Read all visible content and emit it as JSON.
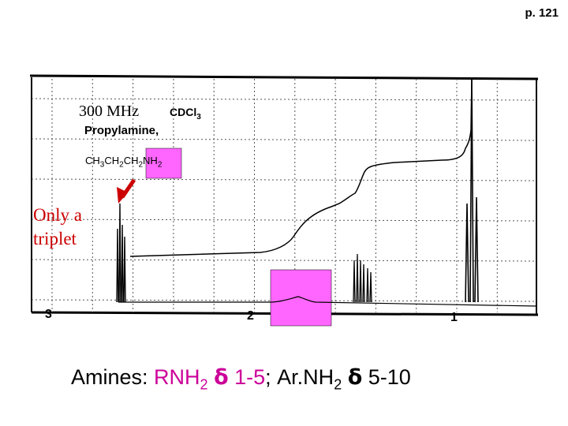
{
  "page_number": "p. 121",
  "spectrum": {
    "frequency": "300 MHz",
    "solvent": {
      "base": "CDCl",
      "sub": "3"
    },
    "compound_name": "Propylamine,",
    "formula_parts": [
      {
        "text": "CH",
        "sub": "3"
      },
      {
        "text": "CH",
        "sub": "2"
      },
      {
        "text": "CH",
        "sub": "2"
      },
      {
        "text": "NH",
        "sub": "2"
      }
    ],
    "axis_ticks": [
      {
        "label": "3",
        "ppm": 3
      },
      {
        "label": "2",
        "ppm": 2
      },
      {
        "label": "1",
        "ppm": 1
      }
    ],
    "highlight_color": "#ff66ff",
    "arrow_color": "#cc0000"
  },
  "annotation": {
    "line1": "Only a",
    "line2": "triplet"
  },
  "caption": {
    "prefix": "Amines: ",
    "rnh": "RNH",
    "rnh_sub": "2",
    "delta1": "δ",
    "range1": " 1-5",
    "sep": "; Ar.NH",
    "arnh_sub": "2",
    "delta2": "δ",
    "range2": " 5-10"
  }
}
